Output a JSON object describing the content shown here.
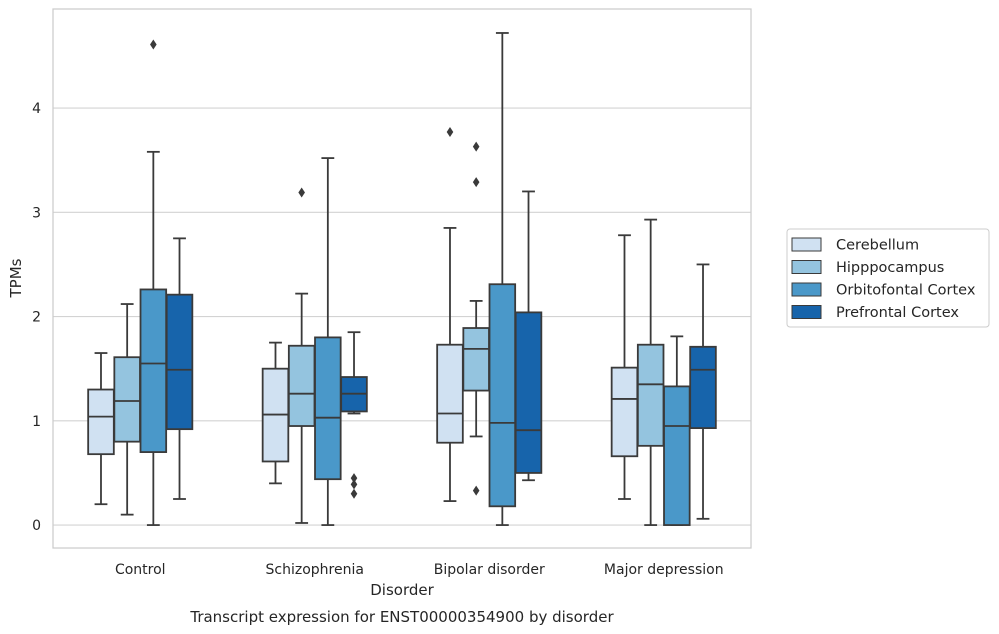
{
  "chart_data": {
    "type": "boxplot",
    "title": "",
    "caption": "Transcript expression for ENST00000354900 by disorder",
    "xlabel": "Disorder",
    "ylabel": "TPMs",
    "ylim": [
      -0.22,
      4.95
    ],
    "yticks": [
      "0",
      "1",
      "2",
      "3",
      "4"
    ],
    "grid": "horizontal",
    "legend_position": "right",
    "categories": [
      "Control",
      "Schizophrenia",
      "Bipolar disorder",
      "Major depression"
    ],
    "series": [
      {
        "name": "Cerebellum",
        "color": "#d0e1f2",
        "boxes": [
          {
            "whisker_low": 0.2,
            "q1": 0.68,
            "median": 1.04,
            "q3": 1.3,
            "whisker_high": 1.65,
            "outliers": []
          },
          {
            "whisker_low": 0.4,
            "q1": 0.61,
            "median": 1.06,
            "q3": 1.5,
            "whisker_high": 1.75,
            "outliers": []
          },
          {
            "whisker_low": 0.23,
            "q1": 0.79,
            "median": 1.07,
            "q3": 1.73,
            "whisker_high": 2.85,
            "outliers": [
              3.77
            ]
          },
          {
            "whisker_low": 0.25,
            "q1": 0.66,
            "median": 1.21,
            "q3": 1.51,
            "whisker_high": 2.78,
            "outliers": []
          }
        ]
      },
      {
        "name": "Hipppocampus",
        "color": "#94c4df",
        "boxes": [
          {
            "whisker_low": 0.1,
            "q1": 0.8,
            "median": 1.19,
            "q3": 1.61,
            "whisker_high": 2.12,
            "outliers": []
          },
          {
            "whisker_low": 0.02,
            "q1": 0.95,
            "median": 1.26,
            "q3": 1.72,
            "whisker_high": 2.22,
            "outliers": [
              3.19
            ]
          },
          {
            "whisker_low": 0.85,
            "q1": 1.29,
            "median": 1.69,
            "q3": 1.89,
            "whisker_high": 2.15,
            "outliers": [
              0.33,
              3.29,
              3.63
            ]
          },
          {
            "whisker_low": 0.0,
            "q1": 0.76,
            "median": 1.35,
            "q3": 1.73,
            "whisker_high": 2.93,
            "outliers": []
          }
        ]
      },
      {
        "name": "Orbitofontal Cortex",
        "color": "#4a98c9",
        "boxes": [
          {
            "whisker_low": 0.0,
            "q1": 0.7,
            "median": 1.55,
            "q3": 2.26,
            "whisker_high": 3.58,
            "outliers": [
              4.61
            ]
          },
          {
            "whisker_low": 0.0,
            "q1": 0.44,
            "median": 1.03,
            "q3": 1.8,
            "whisker_high": 3.52,
            "outliers": []
          },
          {
            "whisker_low": 0.0,
            "q1": 0.18,
            "median": 0.98,
            "q3": 2.31,
            "whisker_high": 4.72,
            "outliers": []
          },
          {
            "whisker_low": 0.0,
            "q1": 0.0,
            "median": 0.95,
            "q3": 1.33,
            "whisker_high": 1.81,
            "outliers": []
          }
        ]
      },
      {
        "name": "Prefrontal Cortex",
        "color": "#1764ab",
        "boxes": [
          {
            "whisker_low": 0.25,
            "q1": 0.92,
            "median": 1.49,
            "q3": 2.21,
            "whisker_high": 2.75,
            "outliers": []
          },
          {
            "whisker_low": 1.07,
            "q1": 1.09,
            "median": 1.26,
            "q3": 1.42,
            "whisker_high": 1.85,
            "outliers": [
              0.3,
              0.39,
              0.45
            ]
          },
          {
            "whisker_low": 0.43,
            "q1": 0.5,
            "median": 0.91,
            "q3": 2.04,
            "whisker_high": 3.2,
            "outliers": []
          },
          {
            "whisker_low": 0.06,
            "q1": 0.93,
            "median": 1.49,
            "q3": 1.71,
            "whisker_high": 2.5,
            "outliers": []
          }
        ]
      }
    ]
  }
}
